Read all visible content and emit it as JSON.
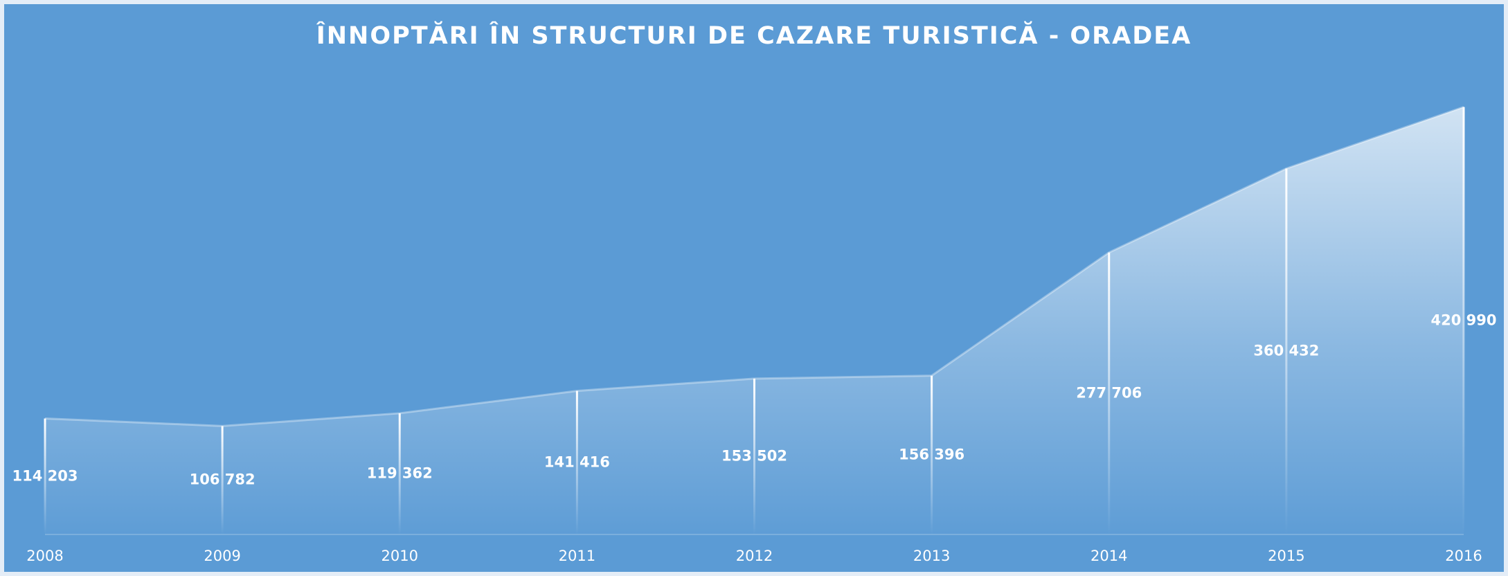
{
  "chart_data": {
    "type": "area",
    "title": "ÎNNOPTĂRI ÎN STRUCTURI DE CAZARE TURISTICĂ - ORADEA",
    "categories": [
      "2008",
      "2009",
      "2010",
      "2011",
      "2012",
      "2013",
      "2014",
      "2015",
      "2016"
    ],
    "values": [
      114203,
      106782,
      119362,
      141416,
      153502,
      156396,
      277706,
      360432,
      420990
    ],
    "value_labels": [
      "114 203",
      "106 782",
      "119 362",
      "141 416",
      "153 502",
      "156 396",
      "277 706",
      "360 432",
      "420 990"
    ],
    "color": "#ffffff",
    "ylim": [
      0,
      450000
    ]
  }
}
